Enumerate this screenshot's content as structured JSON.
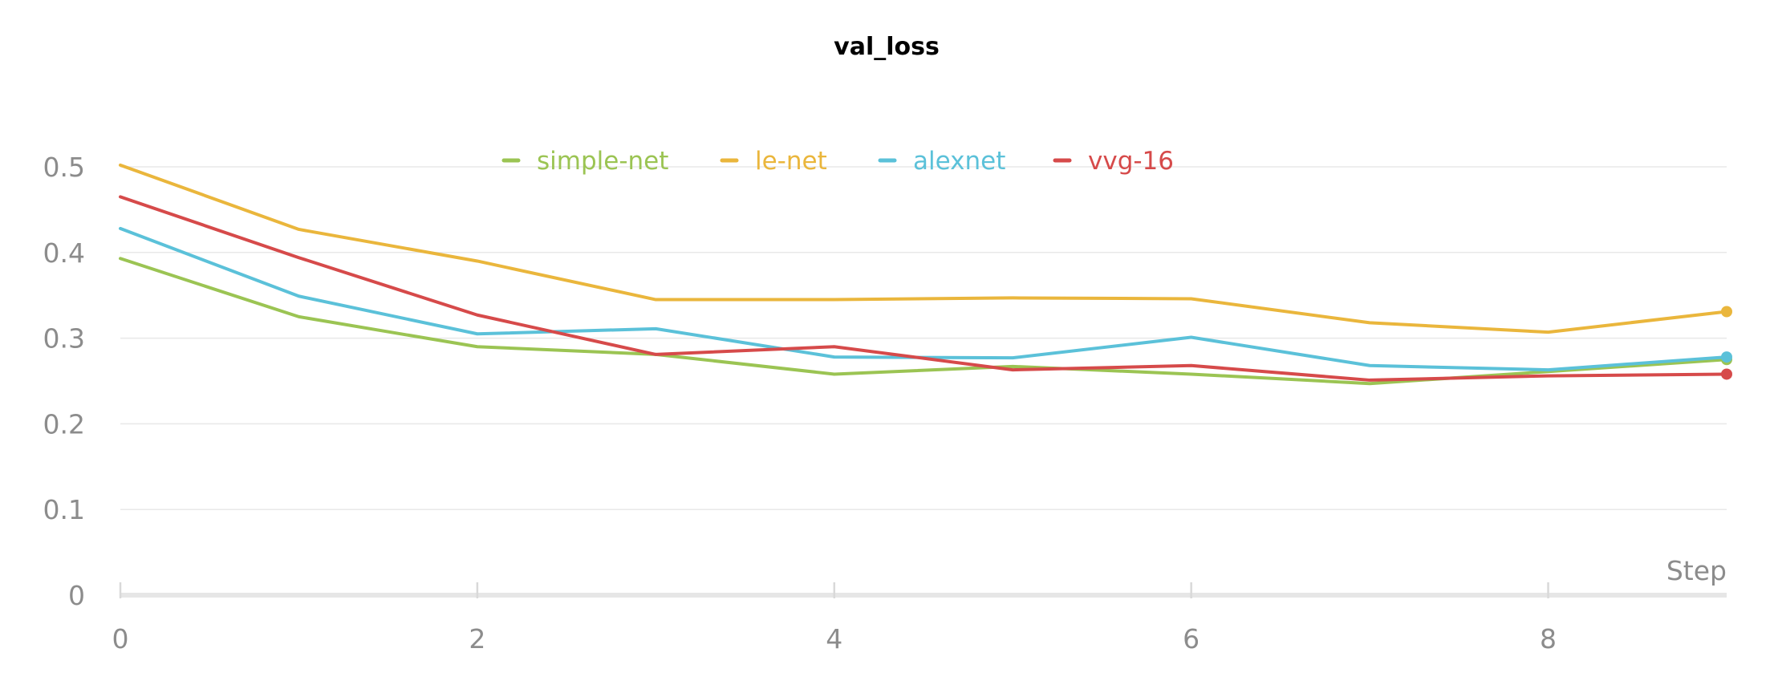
{
  "chart_data": {
    "type": "line",
    "title": "val_loss",
    "xlabel": "Step",
    "ylabel": "",
    "x": [
      0,
      1,
      2,
      3,
      4,
      5,
      6,
      7,
      8,
      9
    ],
    "xticks": [
      0,
      2,
      4,
      6,
      8
    ],
    "yticks": [
      0,
      0.1,
      0.2,
      0.3,
      0.4,
      0.5
    ],
    "xlim": [
      0,
      9
    ],
    "ylim": [
      0,
      0.5
    ],
    "grid": true,
    "legend_position": "top-center",
    "series": [
      {
        "name": "simple-net",
        "color": "#9bc453",
        "values": [
          0.393,
          0.325,
          0.29,
          0.281,
          0.258,
          0.267,
          0.258,
          0.247,
          0.261,
          0.275
        ]
      },
      {
        "name": "le-net",
        "color": "#eab63c",
        "values": [
          0.502,
          0.427,
          0.39,
          0.345,
          0.345,
          0.347,
          0.346,
          0.318,
          0.307,
          0.331
        ]
      },
      {
        "name": "alexnet",
        "color": "#5bc1d9",
        "values": [
          0.428,
          0.349,
          0.305,
          0.311,
          0.278,
          0.277,
          0.301,
          0.268,
          0.263,
          0.278
        ]
      },
      {
        "name": "vvg-16",
        "color": "#d64a4a",
        "values": [
          0.465,
          0.394,
          0.327,
          0.281,
          0.29,
          0.263,
          0.268,
          0.251,
          0.256,
          0.258
        ]
      }
    ]
  }
}
